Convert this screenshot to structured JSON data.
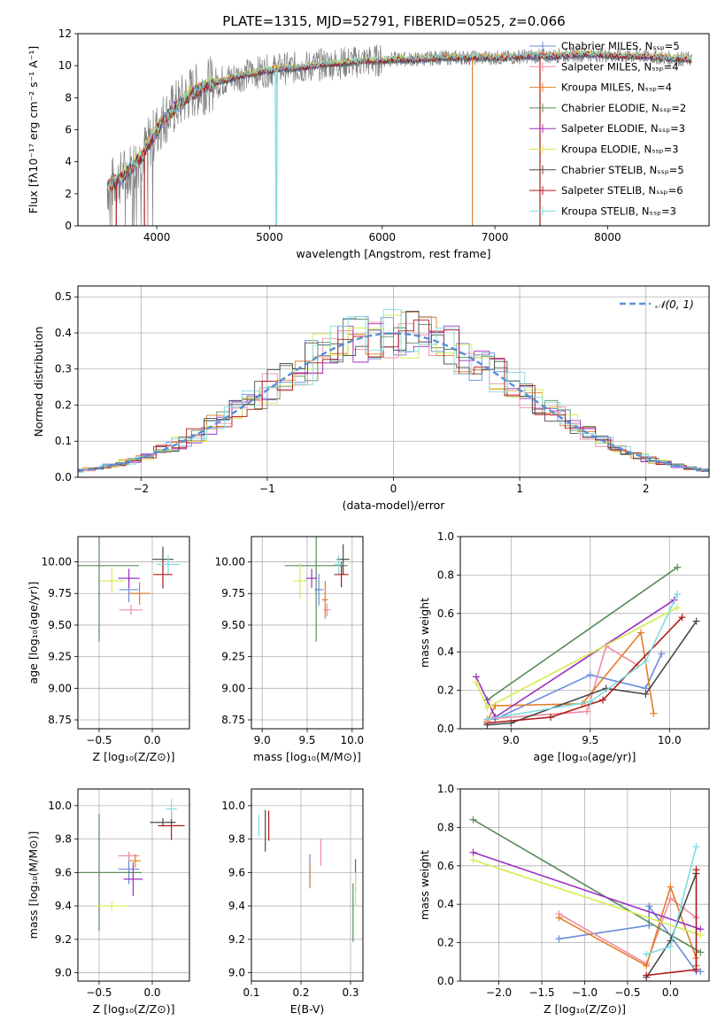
{
  "figure": {
    "title": "PLATE=1315, MJD=52791, FIBERID=0525, z=0.066"
  },
  "colors": {
    "data_spectrum": "#808080",
    "normal_curve": "#5b8fd6",
    "series": [
      "#6a8bdc",
      "#f08ca0",
      "#e37d2a",
      "#5a8a5a",
      "#9b30c0",
      "#d4ec50",
      "#4a4a4a",
      "#b01818",
      "#80dce0"
    ]
  },
  "chart_data": [
    {
      "id": "spectrum",
      "type": "line",
      "xlabel": "wavelength [Angstrom, rest frame]",
      "ylabel": "Flux [fλ10⁻¹⁷ erg cm⁻² s⁻¹ A⁻¹]",
      "xlim": [
        3300,
        8900
      ],
      "ylim": [
        0,
        12
      ],
      "xticks": [
        "4000",
        "5000",
        "6000",
        "7000",
        "8000"
      ],
      "yticks": [
        "0",
        "2",
        "4",
        "6",
        "8",
        "10",
        "12"
      ],
      "grid": false,
      "legend_position": "upper right",
      "legend": [
        "Chabrier MILES, Nₛₛₚ=5",
        "Salpeter MILES, Nₛₛₚ=4",
        "Kroupa MILES, Nₛₛₚ=4",
        "Chabrier ELODIE, Nₛₛₚ=2",
        "Salpeter ELODIE, Nₛₛₚ=3",
        "Kroupa ELODIE, Nₛₛₚ=3",
        "Chabrier STELIB, Nₛₛₚ=5",
        "Salpeter STELIB, Nₛₛₚ=6",
        "Kroupa STELIB, Nₛₛₚ=3"
      ],
      "continuum": {
        "x": [
          3560,
          3700,
          3850,
          3950,
          4050,
          4150,
          4300,
          4500,
          4700,
          4900,
          5100,
          5300,
          5500,
          5700,
          5900,
          6100,
          6300,
          6500,
          6700,
          6900,
          7100,
          7300,
          7500,
          7700,
          7900,
          8100,
          8300,
          8500,
          8700
        ],
        "y": [
          2.4,
          3.1,
          4.2,
          5.4,
          6.6,
          7.3,
          8.3,
          8.9,
          9.3,
          9.6,
          9.8,
          9.9,
          10.1,
          10.2,
          10.3,
          10.4,
          10.4,
          10.5,
          10.5,
          10.5,
          10.5,
          10.6,
          10.6,
          10.7,
          10.7,
          10.6,
          10.6,
          10.5,
          10.4
        ]
      },
      "dips": [
        {
          "x": 5060,
          "y": 0
        },
        {
          "x": 6800,
          "y": 0
        },
        {
          "x": 7400,
          "y": 0
        },
        {
          "x": 3890,
          "y": 0
        },
        {
          "x": 3640,
          "y": 0
        }
      ]
    },
    {
      "id": "residuals",
      "type": "line",
      "xlabel": "(data-model)/error",
      "ylabel": "Normed distribution",
      "xlim": [
        -2.5,
        2.5
      ],
      "ylim": [
        0,
        0.53
      ],
      "xticks": [
        "−2",
        "−1",
        "0",
        "1",
        "2"
      ],
      "yticks": [
        "0.0",
        "0.1",
        "0.2",
        "0.3",
        "0.4",
        "0.5"
      ],
      "grid": true,
      "legend_position": "upper right",
      "legend": [
        "𝒩(0, 1)"
      ],
      "normal": {
        "mean": 0,
        "sigma": 1
      }
    },
    {
      "id": "z-age",
      "type": "scatter",
      "xlabel": "Z [log₁₀(Z/Z⊙)]",
      "ylabel": "age  [log₁₀(age/yr)]",
      "xlim": [
        -0.7,
        0.35
      ],
      "ylim": [
        8.68,
        10.2
      ],
      "xticks": [
        "−0.5",
        "0.0"
      ],
      "yticks": [
        "8.75",
        "9.00",
        "9.25",
        "9.50",
        "9.75",
        "10.00"
      ],
      "grid": true,
      "points": [
        {
          "x": -0.22,
          "xerr": 0.18,
          "y": 9.78,
          "yerr": 0.2,
          "c": 0
        },
        {
          "x": -0.2,
          "xerr": 0.22,
          "y": 9.62,
          "yerr": 0.08,
          "c": 1
        },
        {
          "x": -0.12,
          "xerr": 0.2,
          "y": 9.75,
          "yerr": 0.18,
          "c": 2
        },
        {
          "x": -0.5,
          "xerr": 0.75,
          "y": 9.97,
          "yerr": 1.2,
          "c": 3
        },
        {
          "x": -0.22,
          "xerr": 0.2,
          "y": 9.87,
          "yerr": 0.15,
          "c": 4
        },
        {
          "x": -0.38,
          "xerr": 0.22,
          "y": 9.85,
          "yerr": 0.2,
          "c": 5
        },
        {
          "x": 0.1,
          "xerr": 0.2,
          "y": 10.02,
          "yerr": 0.2,
          "c": 6
        },
        {
          "x": 0.1,
          "xerr": 0.18,
          "y": 9.9,
          "yerr": 0.22,
          "c": 7
        },
        {
          "x": 0.15,
          "xerr": 0.22,
          "y": 9.98,
          "yerr": 0.15,
          "c": 8
        }
      ]
    },
    {
      "id": "mass-age",
      "type": "scatter",
      "xlabel": "mass [log₁₀(M/M⊙)]",
      "ylabel": "",
      "xlim": [
        8.88,
        10.12
      ],
      "ylim": [
        8.68,
        10.2
      ],
      "xticks": [
        "9.0",
        "9.5",
        "10.0"
      ],
      "yticks": [
        "8.75",
        "9.00",
        "9.25",
        "9.50",
        "9.75",
        "10.00"
      ],
      "grid": true,
      "points": [
        {
          "x": 9.63,
          "xerr": 0.1,
          "y": 9.78,
          "yerr": 0.25,
          "c": 0
        },
        {
          "x": 9.72,
          "xerr": 0.08,
          "y": 9.62,
          "yerr": 0.1,
          "c": 1
        },
        {
          "x": 9.7,
          "xerr": 0.07,
          "y": 9.7,
          "yerr": 0.3,
          "c": 2
        },
        {
          "x": 9.6,
          "xerr": 0.7,
          "y": 9.97,
          "yerr": 1.2,
          "c": 3
        },
        {
          "x": 9.55,
          "xerr": 0.12,
          "y": 9.87,
          "yerr": 0.15,
          "c": 4
        },
        {
          "x": 9.42,
          "xerr": 0.15,
          "y": 9.85,
          "yerr": 0.28,
          "c": 5
        },
        {
          "x": 9.9,
          "xerr": 0.14,
          "y": 10.02,
          "yerr": 0.24,
          "c": 6
        },
        {
          "x": 9.88,
          "xerr": 0.16,
          "y": 9.9,
          "yerr": 0.2,
          "c": 7
        },
        {
          "x": 9.85,
          "xerr": 0.1,
          "y": 9.98,
          "yerr": 0.15,
          "c": 8
        }
      ]
    },
    {
      "id": "age-weight",
      "type": "line",
      "xlabel": "age  [log₁₀(age/yr)]",
      "ylabel": "mass weight",
      "xlim": [
        8.68,
        10.25
      ],
      "ylim": [
        0,
        1.0
      ],
      "xticks": [
        "9.0",
        "9.5",
        "10.0"
      ],
      "yticks": [
        "0.0",
        "0.2",
        "0.4",
        "0.6",
        "0.8",
        "1.0"
      ],
      "grid": true,
      "series": [
        {
          "x": [
            8.85,
            8.9,
            9.5,
            9.85,
            9.95
          ],
          "y": [
            0.05,
            0.05,
            0.28,
            0.21,
            0.39
          ],
          "c": 0
        },
        {
          "x": [
            8.85,
            9.48,
            9.6,
            9.8
          ],
          "y": [
            0.05,
            0.09,
            0.43,
            0.33
          ],
          "c": 1
        },
        {
          "x": [
            8.85,
            8.9,
            9.45,
            9.82,
            9.9
          ],
          "y": [
            0.04,
            0.12,
            0.13,
            0.5,
            0.08
          ],
          "c": 2
        },
        {
          "x": [
            8.85,
            10.05
          ],
          "y": [
            0.15,
            0.84
          ],
          "c": 3
        },
        {
          "x": [
            8.78,
            8.9,
            10.03
          ],
          "y": [
            0.27,
            0.06,
            0.67
          ],
          "c": 4
        },
        {
          "x": [
            8.78,
            8.85,
            10.05
          ],
          "y": [
            0.24,
            0.11,
            0.63
          ],
          "c": 5
        },
        {
          "x": [
            8.85,
            9.0,
            9.6,
            9.85,
            10.17
          ],
          "y": [
            0.02,
            0.03,
            0.21,
            0.18,
            0.56
          ],
          "c": 6
        },
        {
          "x": [
            8.85,
            9.25,
            9.58,
            10.08
          ],
          "y": [
            0.03,
            0.06,
            0.15,
            0.58
          ],
          "c": 7
        },
        {
          "x": [
            8.85,
            9.5,
            9.85,
            10.05
          ],
          "y": [
            0.05,
            0.14,
            0.35,
            0.7
          ],
          "c": 8
        }
      ]
    },
    {
      "id": "z-mass",
      "type": "scatter",
      "xlabel": "Z [log₁₀(Z/Z⊙)]",
      "ylabel": "mass [log₁₀(M/M⊙)]",
      "xlim": [
        -0.7,
        0.35
      ],
      "ylim": [
        8.95,
        10.1
      ],
      "xticks": [
        "−0.5",
        "0.0"
      ],
      "yticks": [
        "9.0",
        "9.2",
        "9.4",
        "9.6",
        "9.8",
        "10.0"
      ],
      "grid": true,
      "points": [
        {
          "x": -0.22,
          "xerr": 0.2,
          "y": 9.62,
          "yerr": 0.18,
          "c": 0
        },
        {
          "x": -0.22,
          "xerr": 0.2,
          "y": 9.7,
          "yerr": 0.05,
          "c": 1
        },
        {
          "x": -0.16,
          "xerr": 0.1,
          "y": 9.67,
          "yerr": 0.08,
          "c": 2
        },
        {
          "x": -0.5,
          "xerr": 0.8,
          "y": 9.6,
          "yerr": 0.7,
          "c": 3
        },
        {
          "x": -0.18,
          "xerr": 0.18,
          "y": 9.56,
          "yerr": 0.2,
          "c": 4
        },
        {
          "x": -0.38,
          "xerr": 0.3,
          "y": 9.4,
          "yerr": 0.05,
          "c": 5
        },
        {
          "x": 0.1,
          "xerr": 0.24,
          "y": 9.9,
          "yerr": 0.05,
          "c": 6
        },
        {
          "x": 0.18,
          "xerr": 0.25,
          "y": 9.88,
          "yerr": 0.17,
          "c": 7
        },
        {
          "x": 0.18,
          "xerr": 0.1,
          "y": 9.98,
          "yerr": 0.12,
          "c": 8
        }
      ]
    },
    {
      "id": "ebv-mass",
      "type": "scatter",
      "xlabel": "E(B-V)",
      "ylabel": "",
      "xlim": [
        0.1,
        0.325
      ],
      "ylim": [
        8.95,
        10.1
      ],
      "xticks": [
        "0.1",
        "0.2",
        "0.3"
      ],
      "yticks": [
        "9.0",
        "9.2",
        "9.4",
        "9.6",
        "9.8",
        "10.0"
      ],
      "grid": true,
      "points": [
        {
          "x": 0.218,
          "xerr": 0,
          "y": 9.62,
          "yerr": 0.18,
          "c": 0
        },
        {
          "x": 0.24,
          "xerr": 0,
          "y": 9.72,
          "yerr": 0.16,
          "c": 1
        },
        {
          "x": 0.218,
          "xerr": 0,
          "y": 9.58,
          "yerr": 0.15,
          "c": 2
        },
        {
          "x": 0.305,
          "xerr": 0,
          "y": 9.36,
          "yerr": 0.35,
          "c": 3
        },
        {
          "x": 0.31,
          "xerr": 0,
          "y": 9.58,
          "yerr": 0.2,
          "c": 4
        },
        {
          "x": 0.31,
          "xerr": 0,
          "y": 9.5,
          "yerr": 0.2,
          "c": 5
        },
        {
          "x": 0.128,
          "xerr": 0,
          "y": 9.85,
          "yerr": 0.25,
          "c": 6
        },
        {
          "x": 0.135,
          "xerr": 0,
          "y": 9.88,
          "yerr": 0.18,
          "c": 7
        },
        {
          "x": 0.115,
          "xerr": 0,
          "y": 9.88,
          "yerr": 0.13,
          "c": 8
        }
      ]
    },
    {
      "id": "z-weight",
      "type": "line",
      "xlabel": "Z [log₁₀(Z/Z⊙)]",
      "ylabel": "mass weight",
      "xlim": [
        -2.45,
        0.45
      ],
      "ylim": [
        0,
        1.0
      ],
      "xticks": [
        "−2.0",
        "−1.5",
        "−1.0",
        "−0.5",
        "0.0"
      ],
      "yticks": [
        "0.0",
        "0.2",
        "0.4",
        "0.6",
        "0.8",
        "1.0"
      ],
      "grid": true,
      "series": [
        {
          "x": [
            -1.3,
            -0.25,
            -0.25,
            0.3,
            0.35
          ],
          "y": [
            0.22,
            0.29,
            0.39,
            0.05,
            0.05
          ],
          "c": 0
        },
        {
          "x": [
            -1.3,
            -0.28,
            0.0,
            0.3
          ],
          "y": [
            0.35,
            0.09,
            0.43,
            0.33
          ],
          "c": 1
        },
        {
          "x": [
            -1.3,
            -0.28,
            0.0,
            0.3,
            0.3
          ],
          "y": [
            0.33,
            0.08,
            0.49,
            0.12,
            0.08
          ],
          "c": 2
        },
        {
          "x": [
            -2.3,
            0.35
          ],
          "y": [
            0.84,
            0.15
          ],
          "c": 3
        },
        {
          "x": [
            -2.3,
            0.35
          ],
          "y": [
            0.67,
            0.27
          ],
          "c": 4
        },
        {
          "x": [
            -2.3,
            0.35
          ],
          "y": [
            0.63,
            0.24
          ],
          "c": 5
        },
        {
          "x": [
            -0.28,
            0.0,
            0.3
          ],
          "y": [
            0.02,
            0.21,
            0.56
          ],
          "c": 6
        },
        {
          "x": [
            -0.28,
            0.3,
            0.3
          ],
          "y": [
            0.03,
            0.06,
            0.58
          ],
          "c": 7
        },
        {
          "x": [
            -0.28,
            0.0,
            0.3
          ],
          "y": [
            0.14,
            0.18,
            0.7
          ],
          "c": 8
        }
      ]
    }
  ]
}
